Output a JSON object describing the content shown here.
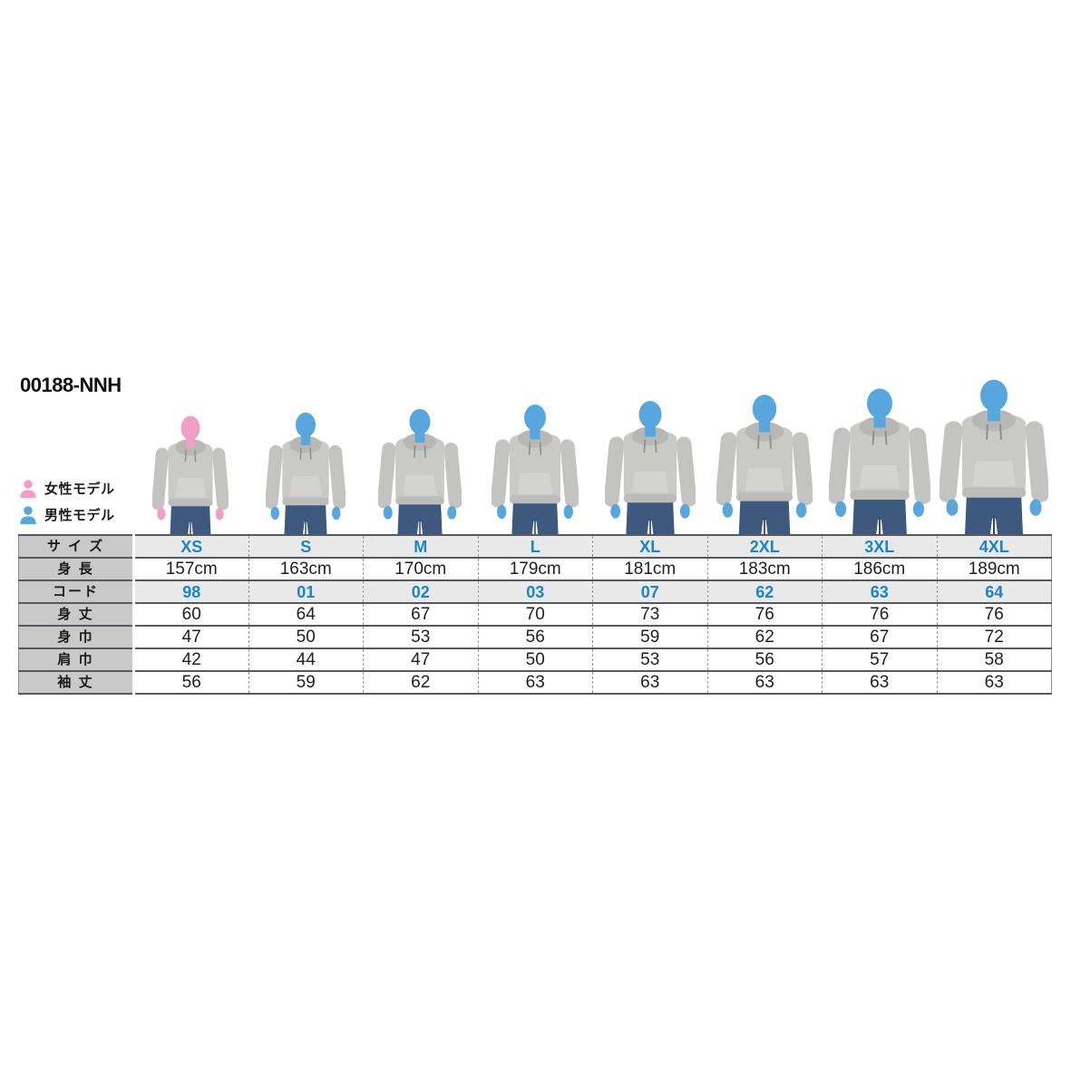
{
  "title": "00188-NNH",
  "legend": {
    "female": {
      "label": "女性モデル",
      "color": "#f09fc6"
    },
    "male": {
      "label": "男性モデル",
      "color": "#57a7de"
    }
  },
  "colors": {
    "accent_text_blue": "#1a85c8",
    "table_label_bg": "#c9c9c9",
    "table_alt_row_bg": "#e9e9e9",
    "table_border": "#565a60",
    "hoodie_gray": "#c9c9c7",
    "jeans_navy": "#3d5a7e"
  },
  "models": [
    {
      "size": "XS",
      "gender": "female",
      "height_cm": 157
    },
    {
      "size": "S",
      "gender": "male",
      "height_cm": 163
    },
    {
      "size": "M",
      "gender": "male",
      "height_cm": 170
    },
    {
      "size": "L",
      "gender": "male",
      "height_cm": 179
    },
    {
      "size": "XL",
      "gender": "male",
      "height_cm": 181
    },
    {
      "size": "2XL",
      "gender": "male",
      "height_cm": 183
    },
    {
      "size": "3XL",
      "gender": "male",
      "height_cm": 186
    },
    {
      "size": "4XL",
      "gender": "male",
      "height_cm": 189
    }
  ],
  "size_chart": {
    "row_headers": [
      "サ イ ズ",
      "身 長",
      "コード",
      "身 丈",
      "身 巾",
      "肩 巾",
      "袖 丈"
    ],
    "sizes": [
      "XS",
      "S",
      "M",
      "L",
      "XL",
      "2XL",
      "3XL",
      "4XL"
    ],
    "height": [
      "157cm",
      "163cm",
      "170cm",
      "179cm",
      "181cm",
      "183cm",
      "186cm",
      "189cm"
    ],
    "code": [
      "98",
      "01",
      "02",
      "03",
      "07",
      "62",
      "63",
      "64"
    ],
    "body_length": [
      "60",
      "64",
      "67",
      "70",
      "73",
      "76",
      "76",
      "76"
    ],
    "body_width": [
      "47",
      "50",
      "53",
      "56",
      "59",
      "62",
      "67",
      "72"
    ],
    "shoulder_width": [
      "42",
      "44",
      "47",
      "50",
      "53",
      "56",
      "57",
      "58"
    ],
    "sleeve_length": [
      "56",
      "59",
      "62",
      "63",
      "63",
      "63",
      "63",
      "63"
    ]
  }
}
